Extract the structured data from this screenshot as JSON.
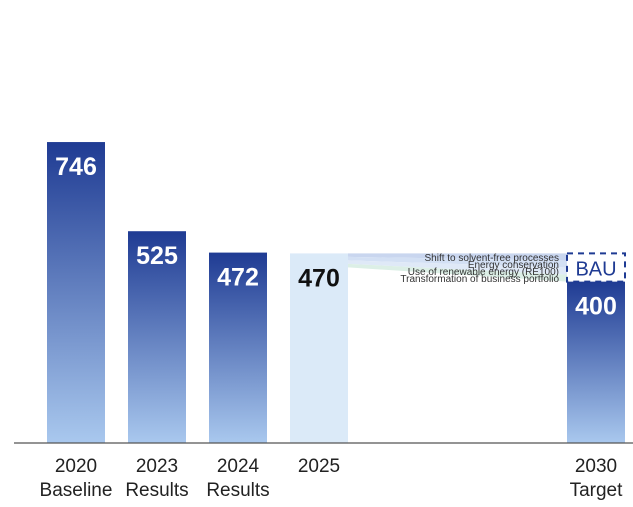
{
  "chart_data": {
    "type": "bar",
    "categories": [
      {
        "year": "2020",
        "label": "Baseline"
      },
      {
        "year": "2023",
        "label": "Results"
      },
      {
        "year": "2024",
        "label": "Results"
      },
      {
        "year": "2025",
        "label": ""
      },
      {
        "year": "2030",
        "label": "Target"
      }
    ],
    "values": [
      746,
      525,
      472,
      470,
      400
    ],
    "value_labels": [
      "746",
      "525",
      "472",
      "470",
      "400"
    ],
    "bau_label": "BAU",
    "bau_value": 470,
    "reduction_measures": [
      "Shift to solvent-free processes",
      "Energy conservation",
      "Use of renewable energy (RE100)",
      "Transformation of business portfolio"
    ],
    "ylim": [
      0,
      880
    ],
    "grid": false,
    "colors": {
      "bar_dark": "#1f3b93",
      "bar_light": "#a9c8ee",
      "bar_2025": "#dbeaf8",
      "bau_border": "#1f3b93",
      "wedge_1": "#c9d6ef",
      "wedge_2": "#d3e0f4",
      "wedge_3": "#dfe9f7",
      "wedge_4": "#dcefe6"
    }
  }
}
